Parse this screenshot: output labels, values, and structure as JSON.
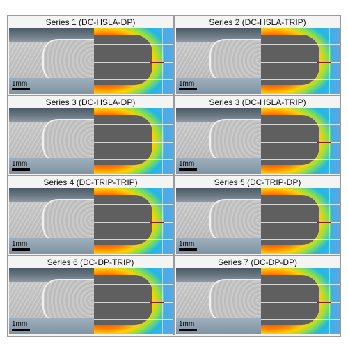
{
  "panels": [
    {
      "title": "Series 1 (DC-HSLA-DP)",
      "scale_label": "1mm"
    },
    {
      "title": "Series 2 (DC-HSLA-TRIP)",
      "scale_label": "1mm"
    },
    {
      "title": "Series 3 (DC-HSLA-DP)",
      "scale_label": "1mm"
    },
    {
      "title": "Series 3 (DC-HSLA-TRIP)",
      "scale_label": "1mm"
    },
    {
      "title": "Series 4 (DC-TRIP-TRIP)",
      "scale_label": "1mm"
    },
    {
      "title": "Series 5 (DC-TRIP-DP)",
      "scale_label": "1mm"
    },
    {
      "title": "Series 6 (DC-DP-TRIP)",
      "scale_label": "1mm"
    },
    {
      "title": "Series 7 (DC-DP-DP)",
      "scale_label": "1mm"
    }
  ]
}
